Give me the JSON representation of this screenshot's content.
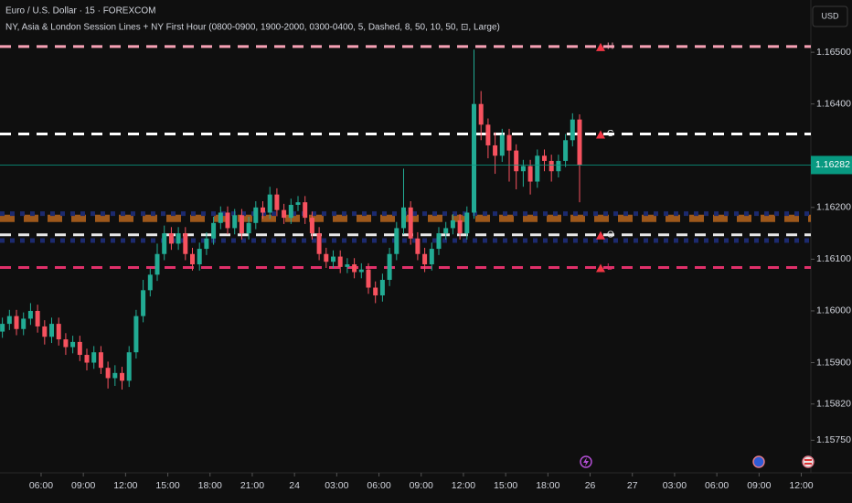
{
  "chart_data": {
    "type": "candlestick",
    "title": "Euro / U.S. Dollar · 15 · FOREXCOM",
    "subtitle": "NY, Asia & London Session Lines + NY First Hour (0800-0900, 1900-2000, 0300-0400, 5, Dashed, 8, 50, 10, 50, ⊡, Large)",
    "currency": "USD",
    "up_color": "#22ab94",
    "down_color": "#f7525f",
    "x": [
      3.25,
      3.75,
      4.25,
      4.75,
      5.25,
      5.75,
      6.25,
      6.75,
      7.25,
      7.75,
      8.25,
      8.75,
      9.25,
      9.75,
      10.25,
      10.75,
      11.25,
      11.75,
      12.25,
      12.75,
      13.25,
      13.75,
      14.25,
      14.75,
      15.25,
      15.75,
      16.25,
      16.75,
      17.25,
      17.75,
      18.25,
      18.75,
      19.25,
      19.75,
      20.25,
      20.75,
      21.25,
      21.75,
      22.25,
      22.75,
      23.25,
      23.75,
      24.25,
      24.75,
      25.25,
      25.75,
      26.25,
      26.75,
      27.25,
      27.75,
      28.25,
      28.75,
      29.25,
      29.75,
      30.25,
      30.75,
      31.25,
      31.75,
      32.25,
      32.75,
      33.25,
      33.75,
      34.25,
      34.75,
      35.25,
      35.75,
      36.25,
      36.75,
      37.25,
      37.75,
      38.25,
      38.75,
      39.25,
      39.75,
      40.25,
      40.75,
      41.25,
      41.75,
      42.25,
      42.75,
      43.25,
      43.75,
      44.25
    ],
    "open": [
      1.1596,
      1.15975,
      1.1599,
      1.15965,
      1.15985,
      1.16,
      1.1597,
      1.1595,
      1.15975,
      1.15945,
      1.1593,
      1.1594,
      1.15915,
      1.159,
      1.1592,
      1.1589,
      1.1587,
      1.1588,
      1.15865,
      1.1592,
      1.1599,
      1.1604,
      1.1607,
      1.1611,
      1.1615,
      1.1613,
      1.1615,
      1.1611,
      1.1609,
      1.1612,
      1.1614,
      1.1617,
      1.1619,
      1.1616,
      1.16185,
      1.1615,
      1.1617,
      1.162,
      1.1619,
      1.16225,
      1.16195,
      1.1618,
      1.16205,
      1.1621,
      1.1618,
      1.1615,
      1.1611,
      1.16095,
      1.16105,
      1.16085,
      1.1609,
      1.16075,
      1.1608,
      1.16045,
      1.1603,
      1.1606,
      1.1611,
      1.1616,
      1.162,
      1.1614,
      1.1611,
      1.1609,
      1.1612,
      1.1615,
      1.1616,
      1.16175,
      1.1615,
      1.1619,
      1.164,
      1.1636,
      1.1632,
      1.163,
      1.1634,
      1.1631,
      1.1627,
      1.1628,
      1.1625,
      1.163,
      1.1629,
      1.1627,
      1.1629,
      1.1633,
      1.1637
    ],
    "high": [
      1.15987,
      1.16002,
      1.16002,
      1.15997,
      1.16015,
      1.16012,
      1.15982,
      1.15987,
      1.15987,
      1.15957,
      1.15952,
      1.15952,
      1.15927,
      1.15932,
      1.15932,
      1.15902,
      1.15895,
      1.15892,
      1.15932,
      1.16002,
      1.1606,
      1.16082,
      1.1613,
      1.16165,
      1.16162,
      1.16162,
      1.16162,
      1.16122,
      1.16132,
      1.16152,
      1.16182,
      1.16202,
      1.16202,
      1.16197,
      1.16197,
      1.16182,
      1.16212,
      1.16212,
      1.1624,
      1.16237,
      1.16207,
      1.16217,
      1.16222,
      1.16222,
      1.16192,
      1.16162,
      1.16122,
      1.16117,
      1.16117,
      1.16102,
      1.16102,
      1.16092,
      1.16092,
      1.16057,
      1.16072,
      1.16122,
      1.16172,
      1.16275,
      1.16212,
      1.16152,
      1.16122,
      1.16132,
      1.16162,
      1.16172,
      1.16187,
      1.16187,
      1.16202,
      1.16505,
      1.16425,
      1.16372,
      1.16345,
      1.16352,
      1.16352,
      1.16322,
      1.16292,
      1.16292,
      1.16312,
      1.16312,
      1.16302,
      1.16302,
      1.16342,
      1.16382,
      1.1638
    ],
    "low": [
      1.15948,
      1.15963,
      1.15953,
      1.15953,
      1.15973,
      1.15958,
      1.15935,
      1.15938,
      1.15933,
      1.15915,
      1.15918,
      1.15903,
      1.15885,
      1.15888,
      1.15878,
      1.1585,
      1.15855,
      1.15848,
      1.15853,
      1.15908,
      1.15978,
      1.16028,
      1.16058,
      1.16098,
      1.16118,
      1.16118,
      1.16098,
      1.16078,
      1.16078,
      1.16108,
      1.16128,
      1.16158,
      1.16148,
      1.16148,
      1.16138,
      1.16138,
      1.16158,
      1.16178,
      1.16178,
      1.16183,
      1.16168,
      1.16168,
      1.16193,
      1.16168,
      1.16138,
      1.16098,
      1.16083,
      1.16083,
      1.16073,
      1.16073,
      1.16063,
      1.16063,
      1.16033,
      1.16015,
      1.16018,
      1.16048,
      1.16098,
      1.16148,
      1.16128,
      1.16098,
      1.16075,
      1.16078,
      1.16108,
      1.16138,
      1.16148,
      1.16138,
      1.16138,
      1.16178,
      1.1633,
      1.16295,
      1.16265,
      1.16288,
      1.1625,
      1.16235,
      1.1624,
      1.16225,
      1.16238,
      1.1627,
      1.1625,
      1.16258,
      1.16278,
      1.16318,
      1.1621
    ],
    "close": [
      1.15975,
      1.1599,
      1.15965,
      1.15985,
      1.16,
      1.1597,
      1.1595,
      1.15975,
      1.15945,
      1.1593,
      1.1594,
      1.15915,
      1.159,
      1.1592,
      1.1589,
      1.1587,
      1.1588,
      1.15865,
      1.1592,
      1.1599,
      1.1604,
      1.1607,
      1.1611,
      1.1615,
      1.1613,
      1.1615,
      1.1611,
      1.1609,
      1.1612,
      1.1614,
      1.1617,
      1.1619,
      1.1616,
      1.16185,
      1.1615,
      1.1617,
      1.162,
      1.1619,
      1.16225,
      1.16195,
      1.1618,
      1.16205,
      1.1621,
      1.1618,
      1.1615,
      1.1611,
      1.16095,
      1.16105,
      1.16085,
      1.1609,
      1.16075,
      1.1608,
      1.16045,
      1.1603,
      1.1606,
      1.1611,
      1.1616,
      1.162,
      1.1614,
      1.1611,
      1.1609,
      1.1612,
      1.1615,
      1.1616,
      1.16175,
      1.1615,
      1.1619,
      1.164,
      1.1636,
      1.1632,
      1.163,
      1.1634,
      1.1631,
      1.1627,
      1.1628,
      1.1625,
      1.163,
      1.1629,
      1.1627,
      1.1629,
      1.1633,
      1.1637,
      1.16282
    ],
    "xlim": [
      3.08,
      60.68
    ],
    "ylim": [
      1.15687,
      1.16601
    ],
    "xticks": [
      {
        "value": 6,
        "label": "06:00"
      },
      {
        "value": 9,
        "label": "09:00"
      },
      {
        "value": 12,
        "label": "12:00"
      },
      {
        "value": 15,
        "label": "15:00"
      },
      {
        "value": 18,
        "label": "18:00"
      },
      {
        "value": 21,
        "label": "21:00"
      },
      24,
      {
        "value": 27,
        "label": "03:00"
      },
      {
        "value": 30,
        "label": "06:00"
      },
      {
        "value": 33,
        "label": "09:00"
      },
      {
        "value": 36,
        "label": "12:00"
      },
      {
        "value": 39,
        "label": "15:00"
      },
      {
        "value": 42,
        "label": "18:00"
      },
      {
        "value": 45,
        "label": "26"
      },
      {
        "value": 48,
        "label": "27"
      },
      {
        "value": 51,
        "label": "03:00"
      },
      {
        "value": 54,
        "label": "06:00"
      },
      {
        "value": 57,
        "label": "09:00"
      },
      {
        "value": 60,
        "label": "12:00"
      }
    ],
    "yticks": [
      {
        "value": 1.165,
        "label": "1.16500"
      },
      {
        "value": 1.164,
        "label": "1.16400"
      },
      {
        "value": 1.162,
        "label": "1.16200"
      },
      {
        "value": 1.161,
        "label": "1.16100"
      },
      {
        "value": 1.16,
        "label": "1.16000"
      },
      {
        "value": 1.159,
        "label": "1.15900"
      },
      {
        "value": 1.1582,
        "label": "1.15820"
      },
      {
        "value": 1.1575,
        "label": "1.15750"
      }
    ],
    "last_price": 1.16282,
    "last_color": "#089981",
    "levels": [
      {
        "value": 1.16179,
        "color": "#b8651e",
        "style": "wide"
      },
      {
        "value": 1.16188,
        "color": "#1c2a6e",
        "style": "dotted"
      },
      {
        "value": 1.16136,
        "color": "#1c2a6e",
        "style": "dotted"
      },
      {
        "value": 1.16511,
        "label": "H",
        "color": "#f7a1b5",
        "style": "dashed"
      },
      {
        "value": 1.16342,
        "label": "C",
        "color": "#ffffff",
        "style": "dashed"
      },
      {
        "value": 1.16147,
        "label": "O",
        "color": "#e8e8e8",
        "style": "dashed"
      },
      {
        "value": 1.16084,
        "label": "L",
        "color": "#e0306a",
        "style": "dashed"
      }
    ]
  }
}
